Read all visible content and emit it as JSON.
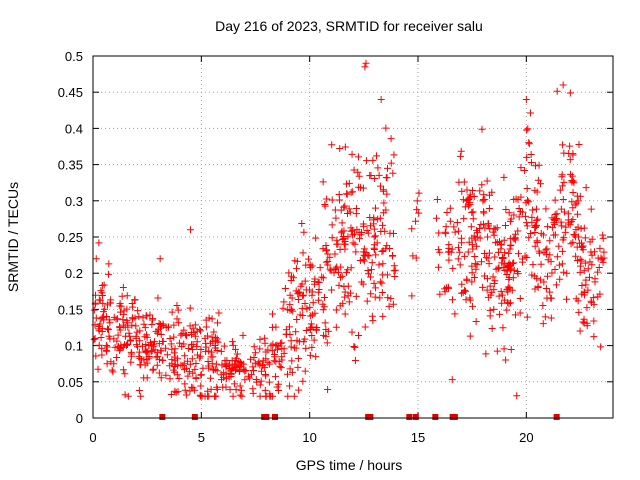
{
  "chart_data": {
    "type": "scatter",
    "title": "Day 216 of 2023, SRMTID for receiver salu",
    "xlabel": "GPS time / hours",
    "ylabel": "SRMTID / TECUs",
    "xlim": [
      0,
      24
    ],
    "ylim": [
      0,
      0.5
    ],
    "x_ticks": [
      0,
      5,
      10,
      15,
      20
    ],
    "x_tick_labels": [
      "0",
      "5",
      "10",
      "15",
      "20"
    ],
    "y_ticks": [
      0,
      0.05,
      0.1,
      0.15,
      0.2,
      0.25,
      0.3,
      0.35,
      0.4,
      0.45,
      0.5
    ],
    "y_tick_labels": [
      "0",
      "0.05",
      "0.1",
      "0.15",
      "0.2",
      "0.25",
      "0.3",
      "0.35",
      "0.4",
      "0.45",
      "0.5"
    ],
    "grid": true,
    "marker": "+",
    "marker_color": "#ff0000",
    "gap_color": "#dd0000",
    "series": [
      {
        "name": "SRMTID",
        "profile": [
          {
            "x": 0.0,
            "center": 0.14,
            "spread": 0.035,
            "count": 60
          },
          {
            "x": 1.0,
            "center": 0.12,
            "spread": 0.035,
            "count": 60
          },
          {
            "x": 2.0,
            "center": 0.11,
            "spread": 0.035,
            "count": 60
          },
          {
            "x": 3.0,
            "center": 0.1,
            "spread": 0.03,
            "count": 55
          },
          {
            "x": 4.0,
            "center": 0.085,
            "spread": 0.035,
            "count": 55
          },
          {
            "x": 5.0,
            "center": 0.085,
            "spread": 0.04,
            "count": 55
          },
          {
            "x": 6.0,
            "center": 0.07,
            "spread": 0.025,
            "count": 55
          },
          {
            "x": 7.0,
            "center": 0.07,
            "spread": 0.02,
            "count": 40
          },
          {
            "x": 8.0,
            "center": 0.06,
            "spread": 0.03,
            "count": 45
          },
          {
            "x": 9.0,
            "center": 0.12,
            "spread": 0.045,
            "count": 60
          },
          {
            "x": 10.0,
            "center": 0.16,
            "spread": 0.05,
            "count": 60
          },
          {
            "x": 11.0,
            "center": 0.21,
            "spread": 0.06,
            "count": 70
          },
          {
            "x": 12.0,
            "center": 0.26,
            "spread": 0.08,
            "count": 65
          },
          {
            "x": 13.0,
            "center": 0.25,
            "spread": 0.06,
            "count": 55
          },
          {
            "x": 14.0,
            "center": 0.25,
            "spread": 0.06,
            "count": 30
          },
          {
            "x": 15.0,
            "center": 0.27,
            "spread": 0.06,
            "count": 25
          },
          {
            "x": 16.0,
            "center": 0.25,
            "spread": 0.05,
            "count": 35
          },
          {
            "x": 17.0,
            "center": 0.22,
            "spread": 0.07,
            "count": 65
          },
          {
            "x": 18.0,
            "center": 0.26,
            "spread": 0.06,
            "count": 70
          },
          {
            "x": 19.0,
            "center": 0.19,
            "spread": 0.06,
            "count": 70
          },
          {
            "x": 20.0,
            "center": 0.29,
            "spread": 0.07,
            "count": 65
          },
          {
            "x": 21.0,
            "center": 0.22,
            "spread": 0.05,
            "count": 55
          },
          {
            "x": 22.0,
            "center": 0.3,
            "spread": 0.06,
            "count": 65
          },
          {
            "x": 22.8,
            "center": 0.2,
            "spread": 0.05,
            "count": 35
          }
        ],
        "spikes": [
          {
            "x": 12.6,
            "y": 0.49
          },
          {
            "x": 12.55,
            "y": 0.485
          },
          {
            "x": 21.7,
            "y": 0.46
          },
          {
            "x": 20.0,
            "y": 0.44
          },
          {
            "x": 13.3,
            "y": 0.44
          },
          {
            "x": 4.5,
            "y": 0.26
          },
          {
            "x": 0.15,
            "y": 0.22
          },
          {
            "x": 3.1,
            "y": 0.22
          }
        ],
        "empty_intervals": [
          [
            14.0,
            14.7
          ],
          [
            15.1,
            15.75
          ]
        ],
        "gap_markers_x": [
          3.2,
          4.7,
          7.9,
          8.0,
          8.4,
          12.7,
          12.8,
          14.6,
          14.9,
          15.8,
          16.6,
          16.7,
          21.4
        ]
      }
    ]
  }
}
